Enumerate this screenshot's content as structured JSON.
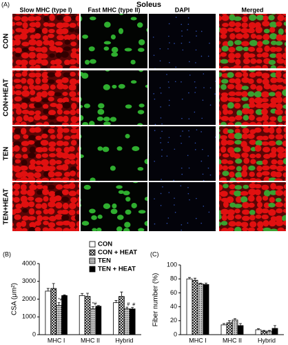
{
  "figure": {
    "panel_a": {
      "label": "(A)",
      "title": "Soleus",
      "columns": [
        "Slow MHC (type I)",
        "Fast MHC (type II)",
        "DAPI",
        "Merged"
      ],
      "rows": [
        "CON",
        "CON+HEAT",
        "TEN",
        "TEN+HEAT"
      ]
    }
  },
  "chart_data": [
    {
      "type": "bar",
      "panel": "(B)",
      "ylabel": "CSA (μm²)",
      "categories": [
        "MHC I",
        "MHC II",
        "Hybrid"
      ],
      "ylim": [
        0,
        4000
      ],
      "yticks": [
        0,
        1000,
        2000,
        3000,
        4000
      ],
      "legend": "top-right",
      "series": [
        {
          "name": "CON",
          "color": "#ffffff",
          "hatch": "none",
          "values": [
            2450,
            2200,
            1800
          ],
          "errors": [
            150,
            120,
            120
          ],
          "marks": [
            null,
            null,
            null
          ]
        },
        {
          "name": "CON + HEAT",
          "color": "#ffffff",
          "hatch": "crosshatch",
          "values": [
            2600,
            2150,
            2150
          ],
          "errors": [
            280,
            180,
            250
          ],
          "marks": [
            null,
            null,
            null
          ]
        },
        {
          "name": "TEN",
          "color": "#b0b0b0",
          "hatch": "dots",
          "values": [
            1650,
            1450,
            1450
          ],
          "errors": [
            150,
            120,
            100
          ],
          "marks": [
            "*#",
            "*#",
            "#"
          ]
        },
        {
          "name": "TEN + HEAT",
          "color": "#000000",
          "hatch": "none",
          "values": [
            2200,
            1600,
            1450
          ],
          "errors": [
            40,
            40,
            80
          ],
          "marks": [
            null,
            null,
            "#"
          ]
        }
      ]
    },
    {
      "type": "bar",
      "panel": "(C)",
      "ylabel": "Fiber number (%)",
      "categories": [
        "MHC I",
        "MHC II",
        "Hybrid"
      ],
      "ylim": [
        0,
        100
      ],
      "yticks": [
        0,
        20,
        40,
        60,
        80,
        100
      ],
      "series": [
        {
          "name": "CON",
          "color": "#ffffff",
          "hatch": "none",
          "values": [
            80,
            14,
            7
          ],
          "errors": [
            2,
            2,
            1.5
          ]
        },
        {
          "name": "CON + HEAT",
          "color": "#ffffff",
          "hatch": "crosshatch",
          "values": [
            78,
            17,
            5
          ],
          "errors": [
            3,
            3,
            1
          ]
        },
        {
          "name": "TEN",
          "color": "#b0b0b0",
          "hatch": "dots",
          "values": [
            73,
            21,
            5
          ],
          "errors": [
            1,
            2,
            1
          ]
        },
        {
          "name": "TEN + HEAT",
          "color": "#000000",
          "hatch": "none",
          "values": [
            72,
            13,
            9
          ],
          "errors": [
            2,
            3,
            4
          ]
        }
      ]
    }
  ]
}
